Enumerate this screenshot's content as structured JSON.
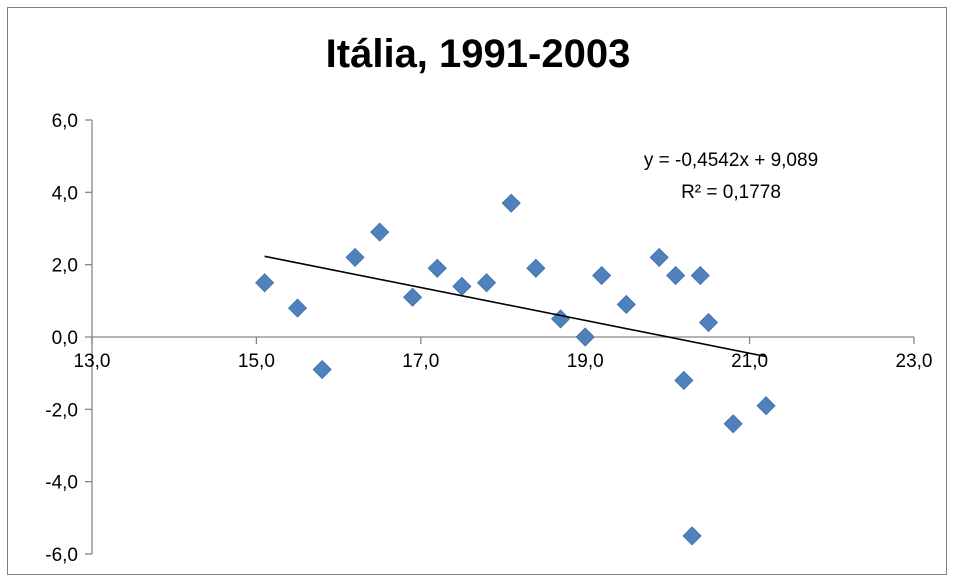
{
  "chart_data": {
    "type": "scatter",
    "title": "Itália, 1991-2003",
    "xlabel": "",
    "ylabel": "",
    "xlim": [
      13.0,
      23.0
    ],
    "ylim": [
      -6.0,
      6.0
    ],
    "x_ticks": [
      13.0,
      15.0,
      17.0,
      19.0,
      21.0,
      23.0
    ],
    "y_ticks": [
      6.0,
      4.0,
      2.0,
      0.0,
      -2.0,
      -4.0,
      -6.0
    ],
    "x_tick_labels": [
      "13,0",
      "15,0",
      "17,0",
      "19,0",
      "21,0",
      "23,0"
    ],
    "y_tick_labels": [
      "6,0",
      "4,0",
      "2,0",
      "0,0",
      "-2,0",
      "-4,0",
      "-6,0"
    ],
    "grid": false,
    "legend": "none",
    "marker_color": "#4f81bd",
    "series": [
      {
        "points": [
          {
            "x": 15.1,
            "y": 1.5
          },
          {
            "x": 15.5,
            "y": 0.8
          },
          {
            "x": 15.8,
            "y": -0.9
          },
          {
            "x": 16.2,
            "y": 2.2
          },
          {
            "x": 16.5,
            "y": 2.9
          },
          {
            "x": 16.9,
            "y": 1.1
          },
          {
            "x": 17.2,
            "y": 1.9
          },
          {
            "x": 17.5,
            "y": 1.4
          },
          {
            "x": 17.8,
            "y": 1.5
          },
          {
            "x": 18.1,
            "y": 3.7
          },
          {
            "x": 18.4,
            "y": 1.9
          },
          {
            "x": 18.7,
            "y": 0.5
          },
          {
            "x": 19.0,
            "y": 0.0
          },
          {
            "x": 19.2,
            "y": 1.7
          },
          {
            "x": 19.5,
            "y": 0.9
          },
          {
            "x": 19.9,
            "y": 2.2
          },
          {
            "x": 20.1,
            "y": 1.7
          },
          {
            "x": 20.2,
            "y": -1.2
          },
          {
            "x": 20.3,
            "y": -5.5
          },
          {
            "x": 20.4,
            "y": 1.7
          },
          {
            "x": 20.5,
            "y": 0.4
          },
          {
            "x": 20.8,
            "y": -2.4
          },
          {
            "x": 21.2,
            "y": -1.9
          }
        ]
      }
    ],
    "trendline": {
      "slope": -0.4542,
      "intercept": 9.089,
      "x_range": [
        15.1,
        21.2
      ],
      "equation_label": "y = -0,4542x + 9,089",
      "r2_label": "R² = 0,1778"
    }
  }
}
